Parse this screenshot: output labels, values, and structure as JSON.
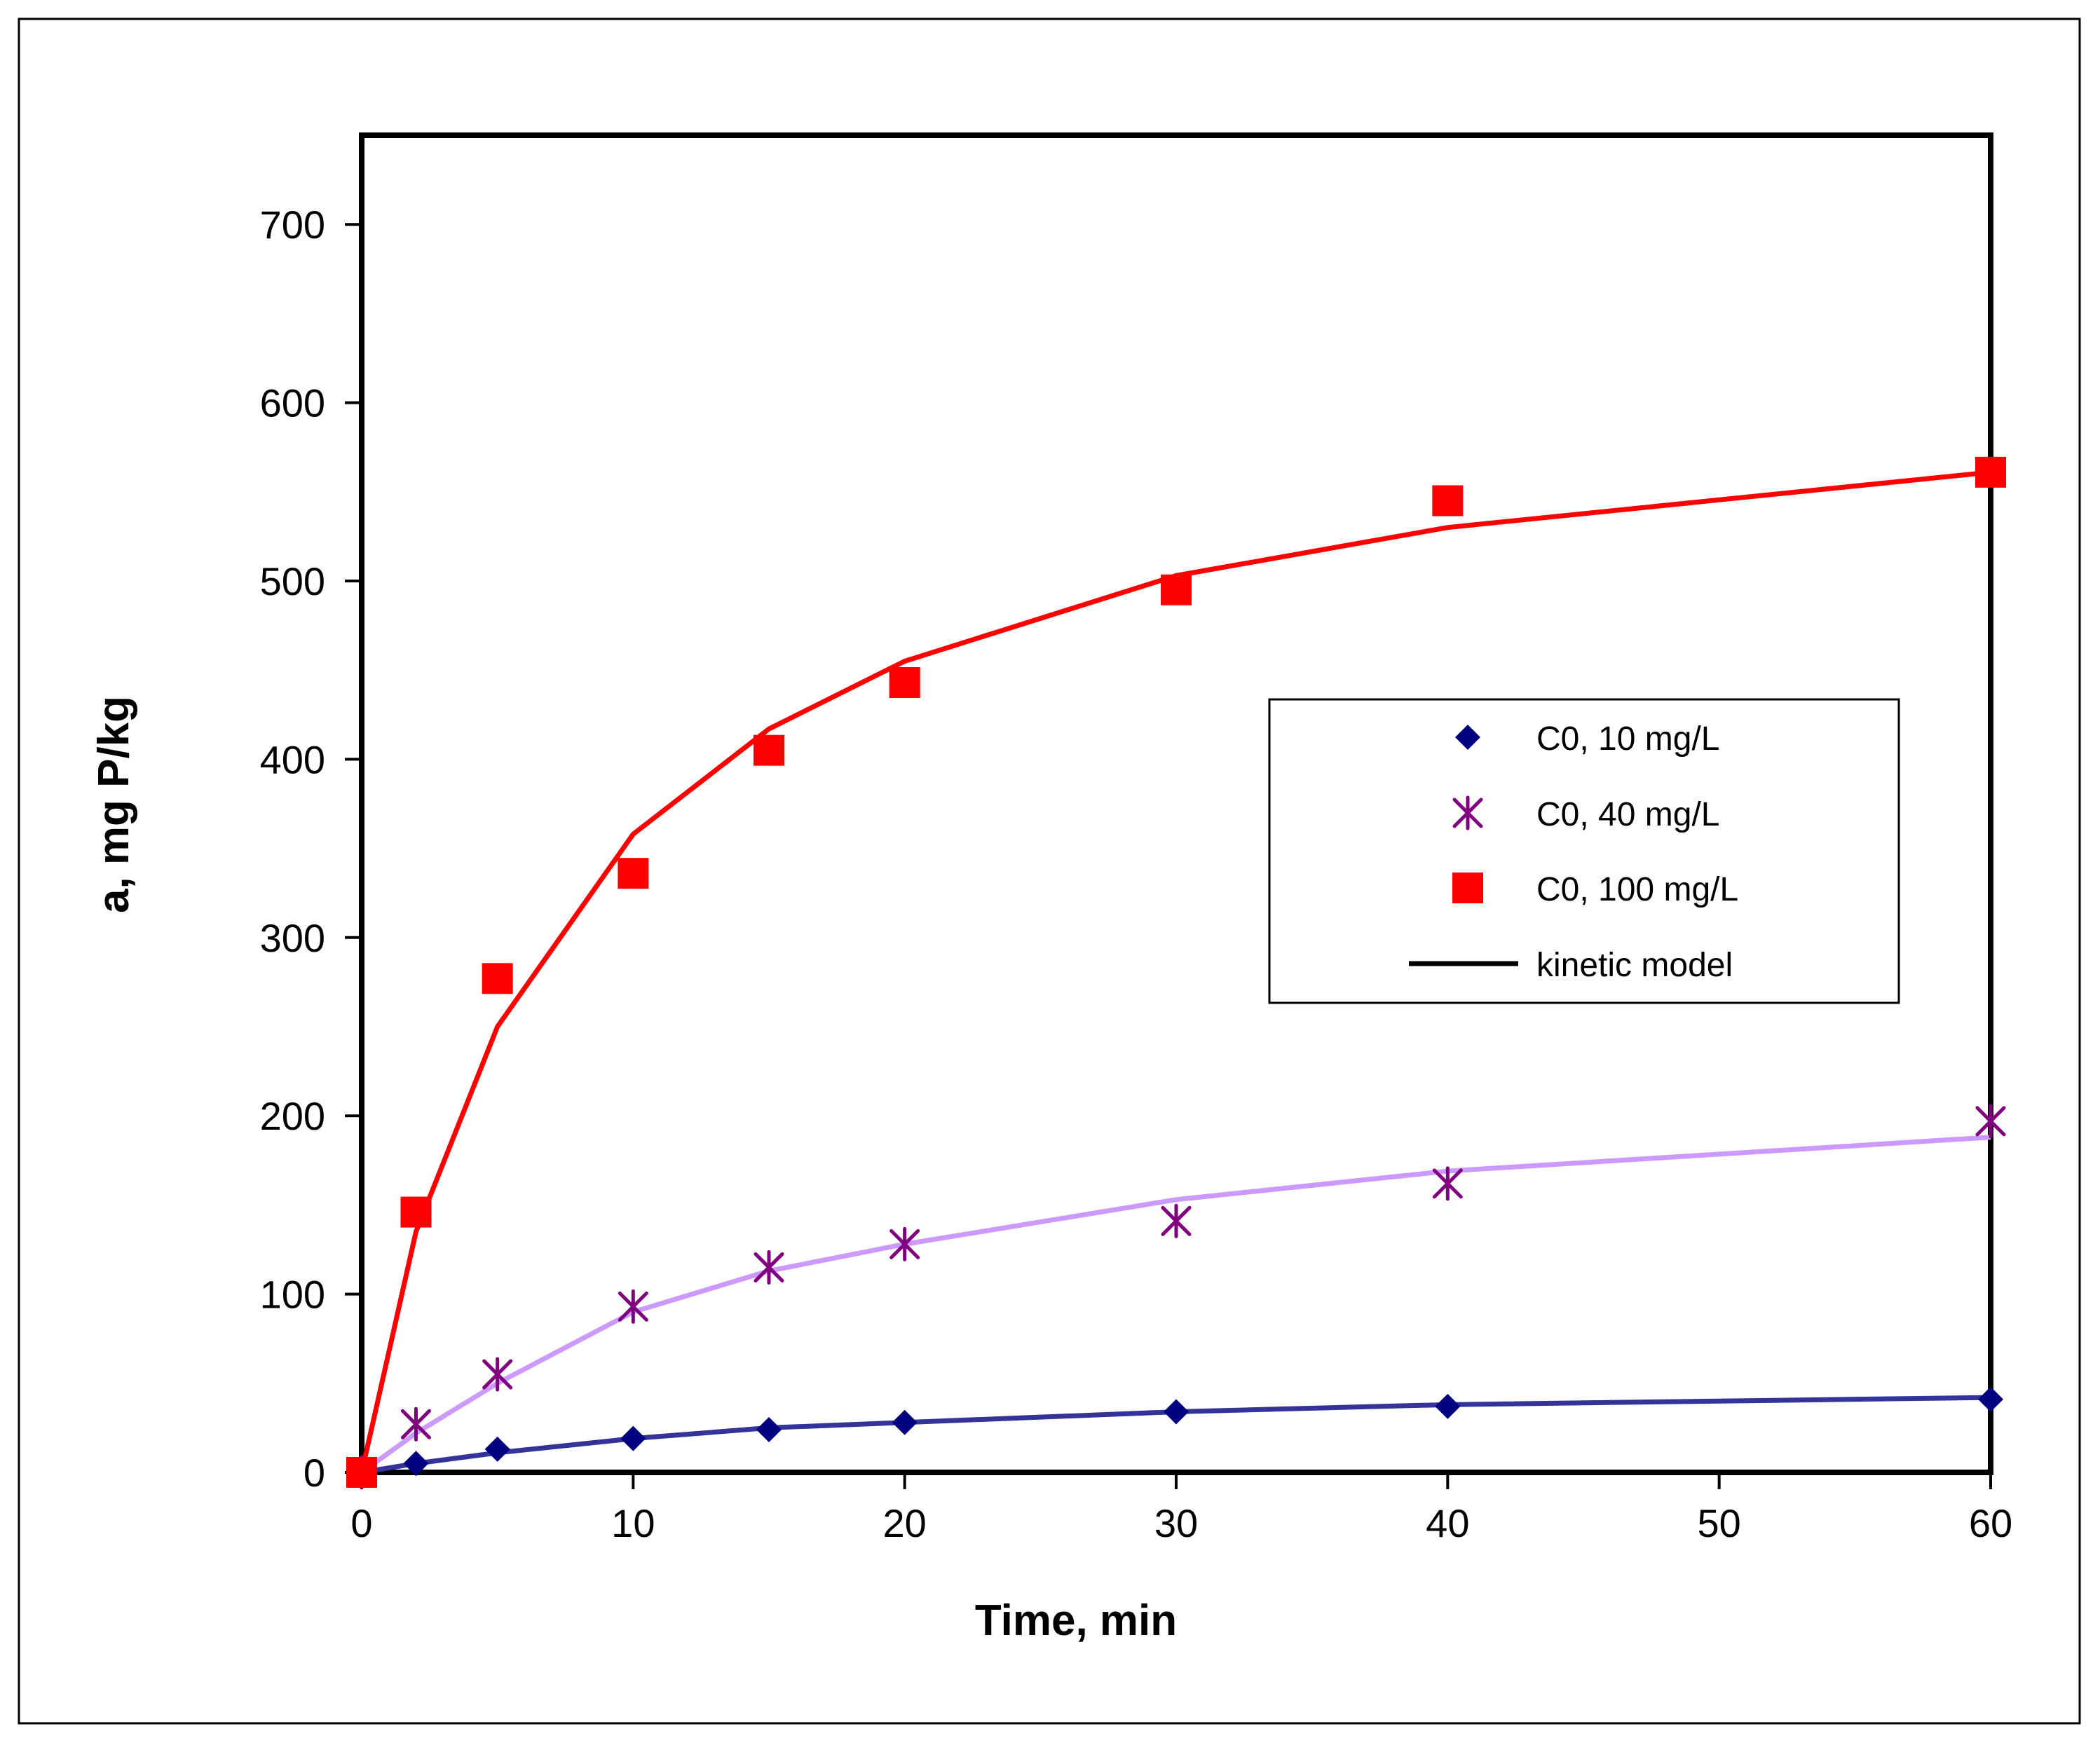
{
  "chart_data": {
    "type": "line",
    "title": "",
    "xlabel": "Time, min",
    "ylabel": "a, mg P/kg",
    "xlim": [
      0,
      60
    ],
    "ylim": [
      0,
      750
    ],
    "xticks": [
      0,
      10,
      20,
      30,
      40,
      50,
      60
    ],
    "yticks": [
      0,
      100,
      200,
      300,
      400,
      500,
      600,
      700
    ],
    "grid": false,
    "legend_position": "right-middle",
    "series": [
      {
        "name": "C0, 10 mg/L",
        "marker": "diamond",
        "color": "#000080",
        "x": [
          0,
          2,
          5,
          10,
          15,
          20,
          30,
          40,
          60
        ],
        "y": [
          0,
          5,
          13,
          19,
          24,
          28,
          34,
          37,
          41
        ]
      },
      {
        "name": "C0, 40 mg/L",
        "marker": "star",
        "color": "#800080",
        "x": [
          0,
          2,
          5,
          10,
          15,
          20,
          30,
          40,
          60
        ],
        "y": [
          0,
          27,
          55,
          93,
          115,
          128,
          141,
          162,
          197
        ]
      },
      {
        "name": "C0, 100 mg/L",
        "marker": "square",
        "color": "#ff0000",
        "x": [
          0,
          2,
          5,
          10,
          15,
          20,
          30,
          40,
          60
        ],
        "y": [
          0,
          146,
          277,
          336,
          405,
          443,
          495,
          545,
          561
        ]
      }
    ],
    "model_curves": [
      {
        "name": "C0, 10 mg/L",
        "color": "#33339a",
        "x": [
          0,
          2,
          5,
          10,
          15,
          20,
          30,
          40,
          60
        ],
        "y": [
          0,
          5,
          11,
          19,
          25,
          28,
          34,
          38,
          42
        ]
      },
      {
        "name": "C0, 40 mg/L",
        "color": "#cc99ff",
        "x": [
          0,
          2,
          5,
          10,
          15,
          20,
          30,
          40,
          60
        ],
        "y": [
          0,
          22,
          50,
          90,
          113,
          128,
          153,
          169,
          188
        ]
      },
      {
        "name": "C0, 100 mg/L",
        "color": "#ff0000",
        "x": [
          0,
          2,
          5,
          10,
          15,
          20,
          30,
          40,
          60
        ],
        "y": [
          0,
          135,
          250,
          358,
          417,
          455,
          503,
          530,
          561
        ]
      }
    ],
    "legend": [
      {
        "label": "C0, 10 mg/L",
        "marker": "diamond",
        "color": "#000080"
      },
      {
        "label": "C0, 40 mg/L",
        "marker": "star",
        "color": "#800080"
      },
      {
        "label": "C0, 100 mg/L",
        "marker": "square",
        "color": "#ff0000"
      },
      {
        "label": "kinetic model",
        "marker": "line",
        "color": "#000000"
      }
    ]
  }
}
